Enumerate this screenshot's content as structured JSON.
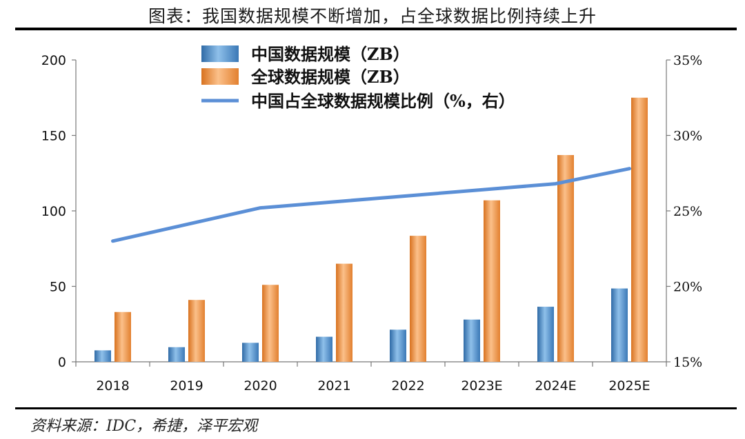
{
  "title": "图表：我国数据规模不断增加，占全球数据比例持续上升",
  "source": "资料来源：IDC，希捷，泽平宏观",
  "chart_data": {
    "type": "bar",
    "categories": [
      "2018",
      "2019",
      "2020",
      "2021",
      "2022",
      "2023E",
      "2024E",
      "2025E"
    ],
    "series": [
      {
        "name": "中国数据规模（ZB）",
        "type": "bar",
        "axis": "left",
        "color": "#4a86c0",
        "values": [
          7.6,
          9.7,
          12.6,
          16.6,
          21.3,
          28.0,
          36.5,
          48.6
        ]
      },
      {
        "name": "全球数据规模（ZB）",
        "type": "bar",
        "axis": "left",
        "color": "#ed8b3e",
        "values": [
          33,
          41,
          51,
          65,
          83.5,
          107,
          137,
          175
        ]
      },
      {
        "name": "中国占全球数据规模比例（%，右）",
        "type": "line",
        "axis": "right",
        "color": "#5b8fd6",
        "values": [
          23.0,
          24.1,
          25.2,
          25.6,
          26.0,
          26.4,
          26.8,
          27.8
        ]
      }
    ],
    "y_left": {
      "min": 0,
      "max": 200,
      "ticks": [
        "0",
        "50",
        "100",
        "150",
        "200"
      ]
    },
    "y_right": {
      "min": 15,
      "max": 35,
      "ticks": [
        "15%",
        "20%",
        "25%",
        "30%",
        "35%"
      ]
    },
    "legend_position": "top-center",
    "grid": false
  }
}
